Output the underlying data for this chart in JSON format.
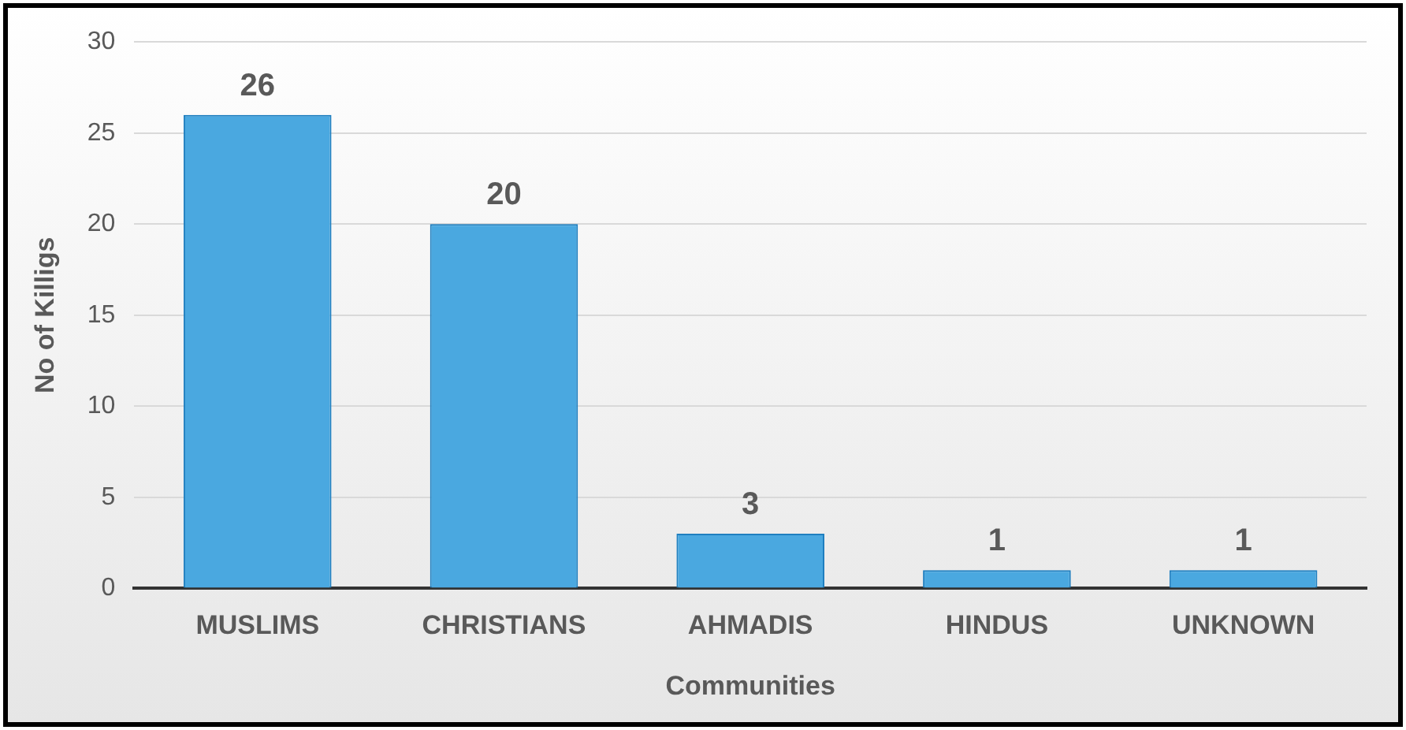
{
  "chart_data": {
    "type": "bar",
    "xlabel": "Communities",
    "ylabel": "No of Killigs",
    "categories": [
      "MUSLIMS",
      "CHRISTIANS",
      "AHMADIS",
      "HINDUS",
      "UNKNOWN"
    ],
    "values": [
      26,
      20,
      3,
      1,
      1
    ],
    "color": "#4aa8e0",
    "ylim": [
      0,
      30
    ],
    "yticks": [
      0,
      5,
      10,
      15,
      20,
      25,
      30
    ],
    "grid": "y",
    "data_labels": true
  }
}
